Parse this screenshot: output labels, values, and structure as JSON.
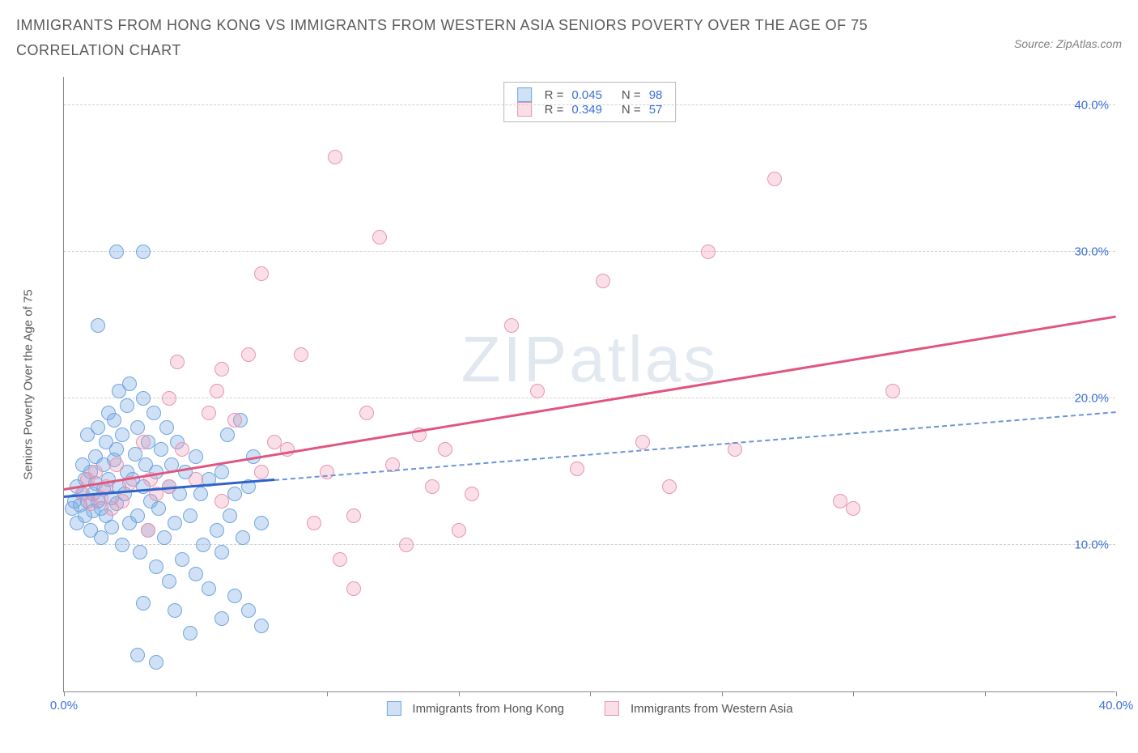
{
  "header": {
    "title": "IMMIGRANTS FROM HONG KONG VS IMMIGRANTS FROM WESTERN ASIA SENIORS POVERTY OVER THE AGE OF 75 CORRELATION CHART",
    "source": "Source: ZipAtlas.com"
  },
  "watermark": {
    "bold": "ZIP",
    "light": "atlas"
  },
  "chart": {
    "type": "scatter",
    "ylabel": "Seniors Poverty Over the Age of 75",
    "xlim": [
      0,
      40
    ],
    "ylim": [
      0,
      42
    ],
    "yticks": [
      10,
      20,
      30,
      40
    ],
    "xticks": [
      0,
      5,
      10,
      15,
      20,
      25,
      30,
      35,
      40
    ],
    "xtick_labels": {
      "0": "0.0%",
      "40": "40.0%"
    },
    "background_color": "#ffffff",
    "grid_color": "#d0d0d0",
    "axis_color": "#888888",
    "tick_color": "#3b6fd6",
    "marker_radius": 9,
    "series": [
      {
        "key": "hk",
        "label": "Immigrants from Hong Kong",
        "fill": "rgba(120,170,230,0.35)",
        "stroke": "#6fa6e0",
        "R": "0.045",
        "N": "98",
        "trend": {
          "x1": 0,
          "y1": 13.2,
          "x2": 40,
          "y2": 19.0,
          "solid_until_x": 8,
          "solid_color": "#2f63c9",
          "dash_color": "#6b94d9"
        },
        "points": [
          [
            0.3,
            12.5
          ],
          [
            0.4,
            13.0
          ],
          [
            0.5,
            14.0
          ],
          [
            0.5,
            11.5
          ],
          [
            0.6,
            12.7
          ],
          [
            0.7,
            13.5
          ],
          [
            0.7,
            15.5
          ],
          [
            0.8,
            12.0
          ],
          [
            0.8,
            14.5
          ],
          [
            0.9,
            13.0
          ],
          [
            0.9,
            17.5
          ],
          [
            1.0,
            11.0
          ],
          [
            1.0,
            15.0
          ],
          [
            1.1,
            13.5
          ],
          [
            1.1,
            12.3
          ],
          [
            1.2,
            16.0
          ],
          [
            1.2,
            14.2
          ],
          [
            1.3,
            13.0
          ],
          [
            1.3,
            18.0
          ],
          [
            1.4,
            12.5
          ],
          [
            1.4,
            10.5
          ],
          [
            1.5,
            15.5
          ],
          [
            1.5,
            13.8
          ],
          [
            1.6,
            17.0
          ],
          [
            1.6,
            12.0
          ],
          [
            1.7,
            14.5
          ],
          [
            1.7,
            19.0
          ],
          [
            1.8,
            13.2
          ],
          [
            1.8,
            11.2
          ],
          [
            1.9,
            15.8
          ],
          [
            1.9,
            18.5
          ],
          [
            2.0,
            12.8
          ],
          [
            2.0,
            16.5
          ],
          [
            2.1,
            20.5
          ],
          [
            2.1,
            14.0
          ],
          [
            2.2,
            10.0
          ],
          [
            2.2,
            17.5
          ],
          [
            2.3,
            13.5
          ],
          [
            2.4,
            15.0
          ],
          [
            2.4,
            19.5
          ],
          [
            2.5,
            11.5
          ],
          [
            2.5,
            21.0
          ],
          [
            2.6,
            14.5
          ],
          [
            2.7,
            16.2
          ],
          [
            2.8,
            12.0
          ],
          [
            2.8,
            18.0
          ],
          [
            2.9,
            9.5
          ],
          [
            3.0,
            20.0
          ],
          [
            3.0,
            14.0
          ],
          [
            3.1,
            15.5
          ],
          [
            3.2,
            11.0
          ],
          [
            3.2,
            17.0
          ],
          [
            3.3,
            13.0
          ],
          [
            3.4,
            19.0
          ],
          [
            3.5,
            8.5
          ],
          [
            3.5,
            15.0
          ],
          [
            3.6,
            12.5
          ],
          [
            3.7,
            16.5
          ],
          [
            3.8,
            10.5
          ],
          [
            3.9,
            18.0
          ],
          [
            4.0,
            14.0
          ],
          [
            4.0,
            7.5
          ],
          [
            4.1,
            15.5
          ],
          [
            4.2,
            11.5
          ],
          [
            4.3,
            17.0
          ],
          [
            4.4,
            13.5
          ],
          [
            4.5,
            9.0
          ],
          [
            4.6,
            15.0
          ],
          [
            4.8,
            12.0
          ],
          [
            5.0,
            16.0
          ],
          [
            5.0,
            8.0
          ],
          [
            5.2,
            13.5
          ],
          [
            5.3,
            10.0
          ],
          [
            5.5,
            14.5
          ],
          [
            5.5,
            7.0
          ],
          [
            5.8,
            11.0
          ],
          [
            6.0,
            15.0
          ],
          [
            6.0,
            9.5
          ],
          [
            6.2,
            17.5
          ],
          [
            6.3,
            12.0
          ],
          [
            6.5,
            13.5
          ],
          [
            6.7,
            18.5
          ],
          [
            6.8,
            10.5
          ],
          [
            7.0,
            14.0
          ],
          [
            7.0,
            5.5
          ],
          [
            7.2,
            16.0
          ],
          [
            7.5,
            11.5
          ],
          [
            7.5,
            4.5
          ],
          [
            2.0,
            30.0
          ],
          [
            3.0,
            30.0
          ],
          [
            1.3,
            25.0
          ],
          [
            2.8,
            2.5
          ],
          [
            3.5,
            2.0
          ],
          [
            4.8,
            4.0
          ],
          [
            6.0,
            5.0
          ],
          [
            6.5,
            6.5
          ],
          [
            3.0,
            6.0
          ],
          [
            4.2,
            5.5
          ]
        ]
      },
      {
        "key": "wa",
        "label": "Immigrants from Western Asia",
        "fill": "rgba(240,150,180,0.30)",
        "stroke": "#e796b0",
        "R": "0.349",
        "N": "57",
        "trend": {
          "x1": 0,
          "y1": 13.7,
          "x2": 40,
          "y2": 25.5,
          "solid_until_x": 40,
          "solid_color": "#e0567f",
          "dash_color": "#e0567f"
        },
        "points": [
          [
            0.7,
            13.5
          ],
          [
            0.9,
            14.5
          ],
          [
            1.0,
            12.8
          ],
          [
            1.2,
            15.0
          ],
          [
            1.4,
            13.2
          ],
          [
            1.6,
            14.0
          ],
          [
            1.8,
            12.5
          ],
          [
            2.0,
            15.5
          ],
          [
            2.2,
            13.0
          ],
          [
            2.5,
            14.2
          ],
          [
            3.0,
            17.0
          ],
          [
            3.3,
            14.5
          ],
          [
            3.5,
            13.5
          ],
          [
            4.0,
            20.0
          ],
          [
            4.3,
            22.5
          ],
          [
            4.5,
            16.5
          ],
          [
            5.0,
            14.5
          ],
          [
            5.5,
            19.0
          ],
          [
            5.8,
            20.5
          ],
          [
            6.0,
            22.0
          ],
          [
            6.5,
            18.5
          ],
          [
            7.0,
            23.0
          ],
          [
            7.5,
            28.5
          ],
          [
            8.0,
            17.0
          ],
          [
            8.5,
            16.5
          ],
          [
            9.0,
            23.0
          ],
          [
            9.5,
            11.5
          ],
          [
            10.0,
            15.0
          ],
          [
            10.3,
            36.5
          ],
          [
            10.5,
            9.0
          ],
          [
            11.0,
            12.0
          ],
          [
            11.5,
            19.0
          ],
          [
            12.0,
            31.0
          ],
          [
            12.5,
            15.5
          ],
          [
            13.0,
            10.0
          ],
          [
            13.5,
            17.5
          ],
          [
            14.0,
            14.0
          ],
          [
            14.5,
            16.5
          ],
          [
            15.0,
            11.0
          ],
          [
            15.5,
            13.5
          ],
          [
            17.0,
            25.0
          ],
          [
            18.0,
            20.5
          ],
          [
            19.5,
            15.2
          ],
          [
            20.5,
            28.0
          ],
          [
            22.0,
            17.0
          ],
          [
            23.0,
            14.0
          ],
          [
            24.5,
            30.0
          ],
          [
            25.5,
            16.5
          ],
          [
            27.0,
            35.0
          ],
          [
            29.5,
            13.0
          ],
          [
            30.0,
            12.5
          ],
          [
            31.5,
            20.5
          ],
          [
            11.0,
            7.0
          ],
          [
            7.5,
            15.0
          ],
          [
            6.0,
            13.0
          ],
          [
            4.0,
            14.0
          ],
          [
            3.2,
            11.0
          ]
        ]
      }
    ],
    "bottom_legend": [
      {
        "label": "Immigrants from Hong Kong",
        "fill": "rgba(120,170,230,0.35)",
        "stroke": "#6fa6e0"
      },
      {
        "label": "Immigrants from Western Asia",
        "fill": "rgba(240,150,180,0.30)",
        "stroke": "#e796b0"
      }
    ]
  }
}
